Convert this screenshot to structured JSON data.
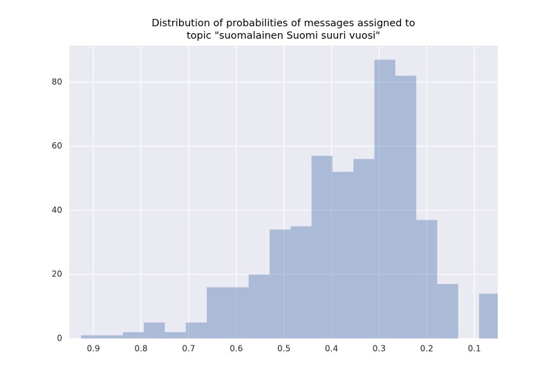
{
  "chart_data": {
    "type": "histogram",
    "title": [
      "Distribution of probabilities of messages assigned to",
      "topic \"suomalainen Suomi suuri vuosi\""
    ],
    "bins": [
      0.926,
      0.882,
      0.838,
      0.794,
      0.75,
      0.706,
      0.662,
      0.618,
      0.574,
      0.53,
      0.486,
      0.442,
      0.398,
      0.354,
      0.31,
      0.266,
      0.222,
      0.178,
      0.134,
      0.09,
      0.046
    ],
    "values": [
      1,
      1,
      2,
      5,
      2,
      5,
      16,
      16,
      20,
      34,
      35,
      57,
      52,
      56,
      87,
      82,
      37,
      17,
      0,
      14
    ],
    "color": "#4c72b0",
    "xlim": [
      0.951,
      0.051
    ],
    "xticks": [
      0.9,
      0.8,
      0.7,
      0.6,
      0.5,
      0.4,
      0.3,
      0.2,
      0.1
    ],
    "ylim": [
      0,
      91.4
    ],
    "yticks": [
      0,
      20,
      40,
      60,
      80
    ],
    "grid": true
  }
}
